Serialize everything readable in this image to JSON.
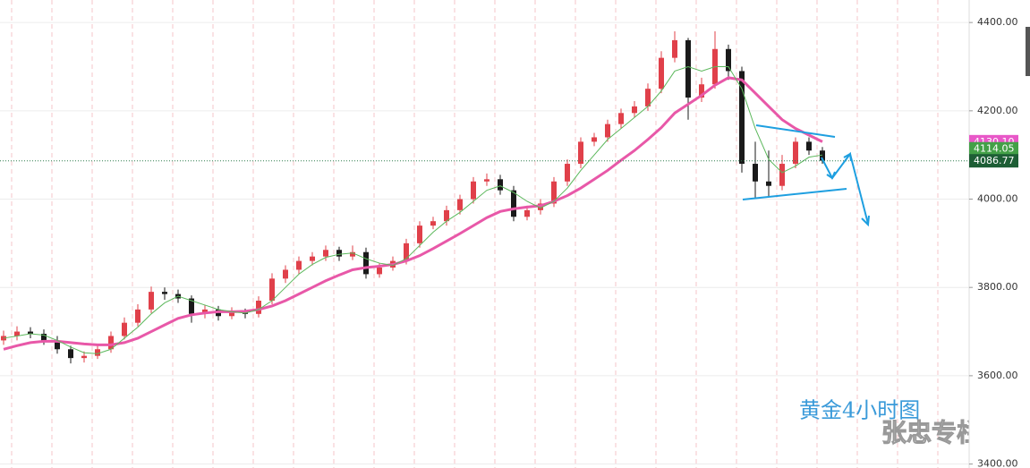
{
  "chart_data": {
    "type": "candlestick",
    "open": [
      3680,
      3690,
      3700,
      3695,
      3680,
      3660,
      3640,
      3645,
      3660,
      3690,
      3720,
      3750,
      3790,
      3785,
      3775,
      3740,
      3750,
      3735,
      3745,
      3740,
      3770,
      3820,
      3840,
      3860,
      3870,
      3885,
      3870,
      3880,
      3830,
      3845,
      3860,
      3900,
      3940,
      3950,
      3975,
      4000,
      4040,
      4045,
      4020,
      3960,
      3975,
      3990,
      4040,
      4080,
      4130,
      4140,
      4170,
      4195,
      4210,
      4250,
      4320,
      4360,
      4230,
      4260,
      4340,
      4290,
      4080,
      4040,
      4030,
      4080,
      4130,
      4110
    ],
    "high": [
      3702,
      3712,
      3710,
      3705,
      3690,
      3668,
      3655,
      3670,
      3700,
      3732,
      3762,
      3802,
      3800,
      3795,
      3782,
      3760,
      3758,
      3755,
      3752,
      3780,
      3832,
      3850,
      3870,
      3880,
      3895,
      3892,
      3895,
      3890,
      3855,
      3870,
      3910,
      3950,
      3960,
      3985,
      4010,
      4050,
      4058,
      4055,
      4030,
      3985,
      4000,
      4050,
      4090,
      4140,
      4150,
      4180,
      4205,
      4222,
      4262,
      4335,
      4380,
      4365,
      4275,
      4380,
      4350,
      4300,
      4130,
      4110,
      4100,
      4140,
      4140,
      4118
    ],
    "low": [
      3670,
      3680,
      3685,
      3670,
      3650,
      3628,
      3630,
      3638,
      3652,
      3682,
      3712,
      3742,
      3772,
      3765,
      3720,
      3730,
      3725,
      3728,
      3730,
      3732,
      3762,
      3810,
      3830,
      3850,
      3860,
      3860,
      3862,
      3820,
      3822,
      3838,
      3852,
      3890,
      3932,
      3940,
      3965,
      3990,
      4030,
      4010,
      3950,
      3952,
      3965,
      3982,
      4030,
      4070,
      4120,
      4130,
      4160,
      4185,
      4200,
      4240,
      4310,
      4180,
      4220,
      4250,
      4270,
      4060,
      4000,
      4005,
      4020,
      4070,
      4100,
      4080
    ],
    "close": [
      3690,
      3700,
      3695,
      3680,
      3660,
      3640,
      3645,
      3660,
      3690,
      3720,
      3750,
      3790,
      3785,
      3775,
      3740,
      3750,
      3735,
      3745,
      3740,
      3770,
      3820,
      3840,
      3860,
      3870,
      3885,
      3870,
      3880,
      3830,
      3845,
      3860,
      3900,
      3940,
      3950,
      3975,
      4000,
      4040,
      4045,
      4020,
      3960,
      3975,
      3990,
      4040,
      4080,
      4130,
      4140,
      4170,
      4195,
      4210,
      4250,
      4320,
      4360,
      4230,
      4260,
      4340,
      4290,
      4080,
      4040,
      4030,
      4080,
      4130,
      4110,
      4087
    ],
    "up_color": "#e0404a",
    "down_color": "#1a1a1a",
    "moving_averages": [
      {
        "color": "#e858a8",
        "values": [
          3660,
          3668,
          3675,
          3678,
          3678,
          3675,
          3672,
          3670,
          3670,
          3675,
          3685,
          3700,
          3715,
          3730,
          3738,
          3742,
          3745,
          3745,
          3746,
          3750,
          3758,
          3770,
          3785,
          3800,
          3815,
          3828,
          3840,
          3845,
          3848,
          3852,
          3860,
          3872,
          3888,
          3905,
          3922,
          3940,
          3958,
          3972,
          3978,
          3982,
          3985,
          3995,
          4008,
          4025,
          4045,
          4065,
          4088,
          4110,
          4135,
          4162,
          4195,
          4215,
          4235,
          4258,
          4275,
          4270,
          4240,
          4210,
          4180,
          4160,
          4145,
          4130
        ]
      },
      {
        "color": "#5cb85c",
        "values": [
          3685,
          3690,
          3695,
          3692,
          3680,
          3665,
          3652,
          3650,
          3660,
          3685,
          3710,
          3740,
          3765,
          3780,
          3770,
          3760,
          3750,
          3745,
          3742,
          3750,
          3770,
          3800,
          3830,
          3852,
          3868,
          3875,
          3878,
          3865,
          3855,
          3850,
          3865,
          3895,
          3925,
          3950,
          3970,
          3995,
          4020,
          4030,
          4015,
          3995,
          3980,
          3995,
          4025,
          4065,
          4100,
          4135,
          4160,
          4185,
          4210,
          4245,
          4290,
          4300,
          4290,
          4300,
          4300,
          4250,
          4160,
          4090,
          4060,
          4075,
          4095,
          4100
        ]
      }
    ],
    "ylim": [
      3391,
      4451
    ],
    "yticks": [
      {
        "value": 3400,
        "label": "3400.00"
      },
      {
        "value": 3600,
        "label": "3600.00"
      },
      {
        "value": 3800,
        "label": "3800.00"
      },
      {
        "value": 4000,
        "label": "4000.00"
      },
      {
        "value": 4200,
        "label": "4200.00"
      },
      {
        "value": 4400,
        "label": "4400.00"
      }
    ],
    "grid": true,
    "price_tags": [
      {
        "value": 4130.1,
        "label": "4130.10",
        "color": "#e858c8"
      },
      {
        "value": 4114.05,
        "color": "#43a047"
      },
      {
        "value": 4086.77,
        "color": "#1d5e35"
      }
    ],
    "annotations": [
      "黄金4小时图",
      "张忠专栏"
    ]
  }
}
